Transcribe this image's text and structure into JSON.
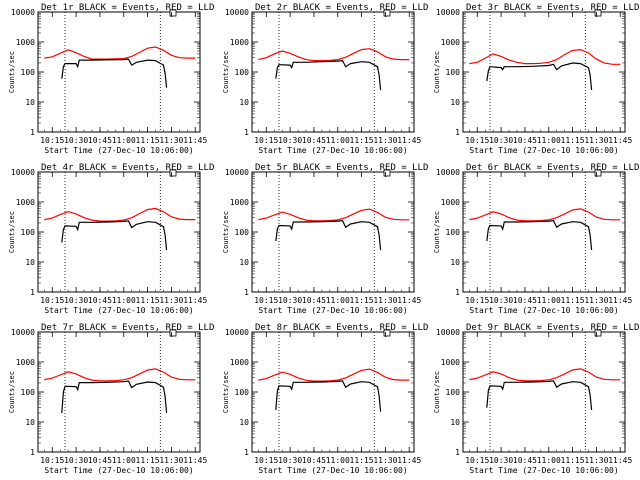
{
  "chart_data": [
    {
      "type": "line",
      "title": "Det 1r BLACK = Events, RED = LLD",
      "xlabel": "Start Time (27-Dec-10 10:06:00)",
      "ylabel": "Counts/sec",
      "y_scale": "log",
      "ylim": [
        1,
        10000
      ],
      "x_ticks": [
        "10:15",
        "10:30",
        "10:45",
        "11:00",
        "11:15",
        "11:30",
        "11:45"
      ],
      "y_ticks": [
        "1",
        "10",
        "100",
        "1000",
        "10000"
      ],
      "vlines_time": [
        "10:23",
        "11:23"
      ],
      "series": [
        {
          "color": "#ff0000",
          "x": [
            "10:10",
            "10:15",
            "10:20",
            "10:25",
            "10:30",
            "10:35",
            "10:40",
            "10:45",
            "10:50",
            "10:55",
            "11:00",
            "11:05",
            "11:10",
            "11:15",
            "11:20",
            "11:25",
            "11:30",
            "11:35",
            "11:40",
            "11:45"
          ],
          "y": [
            290,
            320,
            420,
            550,
            440,
            330,
            270,
            270,
            270,
            275,
            280,
            330,
            450,
            620,
            680,
            530,
            360,
            300,
            290,
            290
          ]
        },
        {
          "color": "#000000",
          "x": [
            "10:21",
            "10:22",
            "10:23",
            "10:30",
            "10:31",
            "10:32",
            "10:40",
            "10:50",
            "11:00",
            "11:03",
            "11:05",
            "11:08",
            "11:15",
            "11:20",
            "11:25",
            "11:26",
            "11:27"
          ],
          "y": [
            60,
            150,
            190,
            190,
            150,
            250,
            250,
            255,
            260,
            270,
            170,
            210,
            250,
            240,
            170,
            90,
            30
          ]
        }
      ]
    },
    {
      "type": "line",
      "title": "Det 2r BLACK = Events, RED = LLD",
      "xlabel": "Start Time (27-Dec-10 10:06:00)",
      "ylabel": "Counts/sec",
      "y_scale": "log",
      "ylim": [
        1,
        10000
      ],
      "x_ticks": [
        "10:15",
        "10:30",
        "10:45",
        "11:00",
        "11:15",
        "11:30",
        "11:45"
      ],
      "y_ticks": [
        "1",
        "10",
        "100",
        "1000",
        "10000"
      ],
      "vlines_time": [
        "10:23",
        "11:23"
      ],
      "series": [
        {
          "color": "#ff0000",
          "x": [
            "10:10",
            "10:15",
            "10:20",
            "10:25",
            "10:30",
            "10:35",
            "10:40",
            "10:45",
            "10:50",
            "10:55",
            "11:00",
            "11:05",
            "11:10",
            "11:15",
            "11:20",
            "11:25",
            "11:30",
            "11:35",
            "11:40",
            "11:45"
          ],
          "y": [
            260,
            300,
            400,
            500,
            420,
            320,
            260,
            240,
            240,
            245,
            260,
            310,
            420,
            560,
            600,
            470,
            320,
            270,
            260,
            260
          ]
        },
        {
          "color": "#000000",
          "x": [
            "10:21",
            "10:22",
            "10:23",
            "10:30",
            "10:31",
            "10:32",
            "10:40",
            "10:50",
            "11:00",
            "11:03",
            "11:05",
            "11:08",
            "11:15",
            "11:20",
            "11:25",
            "11:26",
            "11:27"
          ],
          "y": [
            60,
            140,
            175,
            170,
            140,
            210,
            210,
            220,
            230,
            240,
            150,
            190,
            220,
            210,
            150,
            80,
            25
          ]
        }
      ]
    },
    {
      "type": "line",
      "title": "Det 3r BLACK = Events, RED = LLD",
      "xlabel": "Start Time (27-Dec-10 10:06:00)",
      "ylabel": "Counts/sec",
      "y_scale": "log",
      "ylim": [
        1,
        10000
      ],
      "x_ticks": [
        "10:15",
        "10:30",
        "10:45",
        "11:00",
        "11:15",
        "11:30",
        "11:45"
      ],
      "y_ticks": [
        "1",
        "10",
        "100",
        "1000",
        "10000"
      ],
      "vlines_time": [
        "10:23",
        "11:23"
      ],
      "series": [
        {
          "color": "#ff0000",
          "x": [
            "10:10",
            "10:15",
            "10:20",
            "10:25",
            "10:30",
            "10:35",
            "10:40",
            "10:45",
            "10:50",
            "10:55",
            "11:00",
            "11:05",
            "11:10",
            "11:15",
            "11:20",
            "11:25",
            "11:30",
            "11:35",
            "11:40",
            "11:45"
          ],
          "y": [
            190,
            210,
            290,
            400,
            330,
            250,
            210,
            190,
            190,
            195,
            210,
            260,
            380,
            520,
            560,
            430,
            270,
            200,
            180,
            180
          ]
        },
        {
          "color": "#000000",
          "x": [
            "10:21",
            "10:22",
            "10:23",
            "10:30",
            "10:31",
            "10:32",
            "10:40",
            "10:50",
            "11:00",
            "11:03",
            "11:05",
            "11:08",
            "11:15",
            "11:20",
            "11:25",
            "11:26",
            "11:27"
          ],
          "y": [
            50,
            110,
            150,
            140,
            120,
            150,
            150,
            155,
            165,
            180,
            120,
            160,
            200,
            190,
            140,
            80,
            25
          ]
        }
      ]
    },
    {
      "type": "line",
      "title": "Det 4r BLACK = Events, RED = LLD",
      "xlabel": "Start Time (27-Dec-10 10:06:00)",
      "ylabel": "Counts/sec",
      "y_scale": "log",
      "ylim": [
        1,
        10000
      ],
      "x_ticks": [
        "10:15",
        "10:30",
        "10:45",
        "11:00",
        "11:15",
        "11:30",
        "11:45"
      ],
      "y_ticks": [
        "1",
        "10",
        "100",
        "1000",
        "10000"
      ],
      "vlines_time": [
        "10:23",
        "11:23"
      ],
      "series": [
        {
          "color": "#ff0000",
          "x": [
            "10:10",
            "10:15",
            "10:20",
            "10:25",
            "10:30",
            "10:35",
            "10:40",
            "10:45",
            "10:50",
            "10:55",
            "11:00",
            "11:05",
            "11:10",
            "11:15",
            "11:20",
            "11:25",
            "11:30",
            "11:35",
            "11:40",
            "11:45"
          ],
          "y": [
            260,
            290,
            380,
            480,
            400,
            300,
            250,
            230,
            230,
            235,
            250,
            300,
            410,
            560,
            610,
            470,
            320,
            270,
            260,
            260
          ]
        },
        {
          "color": "#000000",
          "x": [
            "10:21",
            "10:22",
            "10:23",
            "10:30",
            "10:31",
            "10:32",
            "10:40",
            "10:50",
            "11:00",
            "11:03",
            "11:05",
            "11:08",
            "11:15",
            "11:20",
            "11:25",
            "11:26",
            "11:27"
          ],
          "y": [
            45,
            120,
            160,
            155,
            120,
            210,
            210,
            215,
            225,
            235,
            140,
            180,
            220,
            210,
            150,
            80,
            25
          ]
        }
      ]
    },
    {
      "type": "line",
      "title": "Det 5r BLACK = Events, RED = LLD",
      "xlabel": "Start Time (27-Dec-10 10:06:00)",
      "ylabel": "Counts/sec",
      "y_scale": "log",
      "ylim": [
        1,
        10000
      ],
      "x_ticks": [
        "10:15",
        "10:30",
        "10:45",
        "11:00",
        "11:15",
        "11:30",
        "11:45"
      ],
      "y_ticks": [
        "1",
        "10",
        "100",
        "1000",
        "10000"
      ],
      "vlines_time": [
        "10:23",
        "11:23"
      ],
      "series": [
        {
          "color": "#ff0000",
          "x": [
            "10:10",
            "10:15",
            "10:20",
            "10:25",
            "10:30",
            "10:35",
            "10:40",
            "10:45",
            "10:50",
            "10:55",
            "11:00",
            "11:05",
            "11:10",
            "11:15",
            "11:20",
            "11:25",
            "11:30",
            "11:35",
            "11:40",
            "11:45"
          ],
          "y": [
            260,
            290,
            370,
            460,
            390,
            300,
            250,
            235,
            235,
            240,
            255,
            300,
            400,
            530,
            580,
            450,
            310,
            265,
            255,
            255
          ]
        },
        {
          "color": "#000000",
          "x": [
            "10:21",
            "10:22",
            "10:23",
            "10:30",
            "10:31",
            "10:32",
            "10:40",
            "10:50",
            "11:00",
            "11:03",
            "11:05",
            "11:08",
            "11:15",
            "11:20",
            "11:25",
            "11:26",
            "11:27"
          ],
          "y": [
            50,
            130,
            165,
            160,
            125,
            215,
            215,
            220,
            230,
            240,
            145,
            185,
            220,
            210,
            150,
            80,
            25
          ]
        }
      ]
    },
    {
      "type": "line",
      "title": "Det 6r BLACK = Events, RED = LLD",
      "xlabel": "Start Time (27-Dec-10 10:06:00)",
      "ylabel": "Counts/sec",
      "y_scale": "log",
      "ylim": [
        1,
        10000
      ],
      "x_ticks": [
        "10:15",
        "10:30",
        "10:45",
        "11:00",
        "11:15",
        "11:30",
        "11:45"
      ],
      "y_ticks": [
        "1",
        "10",
        "100",
        "1000",
        "10000"
      ],
      "vlines_time": [
        "10:23",
        "11:23"
      ],
      "series": [
        {
          "color": "#ff0000",
          "x": [
            "10:10",
            "10:15",
            "10:20",
            "10:25",
            "10:30",
            "10:35",
            "10:40",
            "10:45",
            "10:50",
            "10:55",
            "11:00",
            "11:05",
            "11:10",
            "11:15",
            "11:20",
            "11:25",
            "11:30",
            "11:35",
            "11:40",
            "11:45"
          ],
          "y": [
            260,
            290,
            370,
            470,
            400,
            300,
            250,
            235,
            235,
            240,
            255,
            300,
            400,
            540,
            590,
            460,
            315,
            265,
            255,
            255
          ]
        },
        {
          "color": "#000000",
          "x": [
            "10:21",
            "10:22",
            "10:23",
            "10:30",
            "10:31",
            "10:32",
            "10:40",
            "10:50",
            "11:00",
            "11:03",
            "11:05",
            "11:08",
            "11:15",
            "11:20",
            "11:25",
            "11:26",
            "11:27"
          ],
          "y": [
            50,
            130,
            165,
            160,
            125,
            215,
            215,
            220,
            230,
            240,
            145,
            185,
            220,
            210,
            150,
            80,
            25
          ]
        }
      ]
    },
    {
      "type": "line",
      "title": "Det 7r BLACK = Events, RED = LLD",
      "xlabel": "Start Time (27-Dec-10 10:06:00)",
      "ylabel": "Counts/sec",
      "y_scale": "log",
      "ylim": [
        1,
        10000
      ],
      "x_ticks": [
        "10:15",
        "10:30",
        "10:45",
        "11:00",
        "11:15",
        "11:30",
        "11:45"
      ],
      "y_ticks": [
        "1",
        "10",
        "100",
        "1000",
        "10000"
      ],
      "vlines_time": [
        "10:23",
        "11:23"
      ],
      "series": [
        {
          "color": "#ff0000",
          "x": [
            "10:10",
            "10:15",
            "10:20",
            "10:25",
            "10:30",
            "10:35",
            "10:40",
            "10:45",
            "10:50",
            "10:55",
            "11:00",
            "11:05",
            "11:10",
            "11:15",
            "11:20",
            "11:25",
            "11:30",
            "11:35",
            "11:40",
            "11:45"
          ],
          "y": [
            260,
            290,
            370,
            470,
            400,
            300,
            250,
            235,
            235,
            240,
            255,
            300,
            400,
            540,
            590,
            460,
            315,
            265,
            255,
            255
          ]
        },
        {
          "color": "#000000",
          "x": [
            "10:21",
            "10:22",
            "10:23",
            "10:30",
            "10:31",
            "10:32",
            "10:40",
            "10:50",
            "11:00",
            "11:03",
            "11:05",
            "11:08",
            "11:15",
            "11:20",
            "11:25",
            "11:26",
            "11:27"
          ],
          "y": [
            20,
            100,
            155,
            150,
            120,
            205,
            205,
            210,
            220,
            230,
            140,
            180,
            215,
            205,
            145,
            70,
            20
          ]
        }
      ]
    },
    {
      "type": "line",
      "title": "Det 8r BLACK = Events, RED = LLD",
      "xlabel": "Start Time (27-Dec-10 10:06:00)",
      "ylabel": "Counts/sec",
      "y_scale": "log",
      "ylim": [
        1,
        10000
      ],
      "x_ticks": [
        "10:15",
        "10:30",
        "10:45",
        "11:00",
        "11:15",
        "11:30",
        "11:45"
      ],
      "y_ticks": [
        "1",
        "10",
        "100",
        "1000",
        "10000"
      ],
      "vlines_time": [
        "10:23",
        "11:23"
      ],
      "series": [
        {
          "color": "#ff0000",
          "x": [
            "10:10",
            "10:15",
            "10:20",
            "10:25",
            "10:30",
            "10:35",
            "10:40",
            "10:45",
            "10:50",
            "10:55",
            "11:00",
            "11:05",
            "11:10",
            "11:15",
            "11:20",
            "11:25",
            "11:30",
            "11:35",
            "11:40",
            "11:45"
          ],
          "y": [
            250,
            280,
            360,
            460,
            390,
            295,
            245,
            230,
            230,
            235,
            250,
            295,
            395,
            530,
            580,
            450,
            310,
            260,
            250,
            250
          ]
        },
        {
          "color": "#000000",
          "x": [
            "10:21",
            "10:22",
            "10:23",
            "10:30",
            "10:31",
            "10:32",
            "10:40",
            "10:50",
            "11:00",
            "11:03",
            "11:05",
            "11:08",
            "11:15",
            "11:20",
            "11:25",
            "11:26",
            "11:27"
          ],
          "y": [
            25,
            110,
            160,
            155,
            125,
            210,
            210,
            215,
            225,
            235,
            145,
            185,
            220,
            210,
            150,
            75,
            22
          ]
        }
      ]
    },
    {
      "type": "line",
      "title": "Det 9r BLACK = Events, RED = LLD",
      "xlabel": "Start Time (27-Dec-10 10:06:00)",
      "ylabel": "Counts/sec",
      "y_scale": "log",
      "ylim": [
        1,
        10000
      ],
      "x_ticks": [
        "10:15",
        "10:30",
        "10:45",
        "11:00",
        "11:15",
        "11:30",
        "11:45"
      ],
      "y_ticks": [
        "1",
        "10",
        "100",
        "1000",
        "10000"
      ],
      "vlines_time": [
        "10:23",
        "11:23"
      ],
      "series": [
        {
          "color": "#ff0000",
          "x": [
            "10:10",
            "10:15",
            "10:20",
            "10:25",
            "10:30",
            "10:35",
            "10:40",
            "10:45",
            "10:50",
            "10:55",
            "11:00",
            "11:05",
            "11:10",
            "11:15",
            "11:20",
            "11:25",
            "11:30",
            "11:35",
            "11:40",
            "11:45"
          ],
          "y": [
            260,
            290,
            370,
            470,
            400,
            300,
            250,
            235,
            235,
            240,
            255,
            300,
            400,
            540,
            590,
            460,
            315,
            265,
            255,
            255
          ]
        },
        {
          "color": "#000000",
          "x": [
            "10:21",
            "10:22",
            "10:23",
            "10:30",
            "10:31",
            "10:32",
            "10:40",
            "10:50",
            "11:00",
            "11:03",
            "11:05",
            "11:08",
            "11:15",
            "11:20",
            "11:25",
            "11:26",
            "11:27"
          ],
          "y": [
            30,
            115,
            160,
            155,
            125,
            210,
            210,
            215,
            225,
            235,
            145,
            185,
            220,
            210,
            150,
            80,
            25
          ]
        }
      ]
    }
  ]
}
